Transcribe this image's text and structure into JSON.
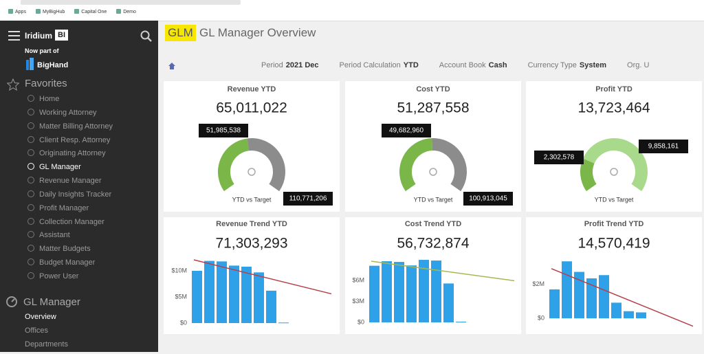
{
  "browser": {
    "bookmarks": [
      "Apps",
      "MyBigHub",
      "Capital One",
      "Demo"
    ]
  },
  "sidebar": {
    "brand": "Iridium",
    "brand_badge": "BI",
    "tagline": "Now part of",
    "partner": "BigHand",
    "favorites_title": "Favorites",
    "favorites": [
      "Home",
      "Working Attorney",
      "Matter Billing Attorney",
      "Client Resp. Attorney",
      "Originating Attorney",
      "GL Manager",
      "Revenue Manager",
      "Daily Insights Tracker",
      "Profit Manager",
      "Collection Manager",
      "Assistant",
      "Matter Budgets",
      "Budget Manager",
      "Power User"
    ],
    "section_title": "GL Manager",
    "section_items": [
      "Overview",
      "Offices",
      "Departments"
    ]
  },
  "header": {
    "badge": "GLM",
    "title": "GL Manager Overview"
  },
  "filters": [
    {
      "label": "Period",
      "value": "2021 Dec"
    },
    {
      "label": "Period Calculation",
      "value": "YTD"
    },
    {
      "label": "Account Book",
      "value": "Cash"
    },
    {
      "label": "Currency Type",
      "value": "System"
    },
    {
      "label": "Org. U"
    }
  ],
  "chart_data": [
    {
      "type": "gauge",
      "title": "Revenue YTD",
      "total": {
        "value": 65011022,
        "label": "65,011,022"
      },
      "caption": "YTD vs Target",
      "value": {
        "value": 51985538,
        "label": "51,985,538"
      },
      "target": {
        "value": 110771206,
        "label": "110,771,206"
      },
      "value_color": "#7ab648",
      "rest_color": "#8c8c8c"
    },
    {
      "type": "gauge",
      "title": "Cost YTD",
      "total": {
        "value": 51287558,
        "label": "51,287,558"
      },
      "caption": "YTD vs Target",
      "value": {
        "value": 49682960,
        "label": "49,682,960"
      },
      "target": {
        "value": 100913045,
        "label": "100,913,045"
      },
      "value_color": "#7ab648",
      "rest_color": "#8c8c8c"
    },
    {
      "type": "gauge",
      "title": "Profit YTD",
      "total": {
        "value": 13723464,
        "label": "13,723,464"
      },
      "caption": "YTD vs Target",
      "value": {
        "value": 2302578,
        "label": "2,302,578"
      },
      "target": {
        "value": 9858161,
        "label": "9,858,161"
      },
      "value_color": "#7ab648",
      "rest_color": "#a9d98b"
    },
    {
      "type": "bar",
      "title": "Revenue Trend YTD",
      "total": {
        "value": 71303293,
        "label": "71,303,293"
      },
      "categories": [
        null,
        null,
        null,
        null,
        null,
        null,
        null,
        null
      ],
      "values": [
        10000000,
        11900000,
        11800000,
        11000000,
        10800000,
        9700000,
        6200000,
        100000
      ],
      "color": "#2ea1e8",
      "ylim": [
        0,
        12500000
      ],
      "yticks": [
        {
          "value": 0,
          "label": "$0"
        },
        {
          "value": 5000000,
          "label": "$5M"
        },
        {
          "value": 10000000,
          "label": "$10M"
        }
      ],
      "trend": [
        12100000,
        5600000
      ],
      "trend_color": "#b5404a"
    },
    {
      "type": "bar",
      "title": "Cost Trend YTD",
      "total": {
        "value": 56732874,
        "label": "56,732,874"
      },
      "categories": [
        null,
        null,
        null,
        null,
        null,
        null,
        null,
        null
      ],
      "values": [
        8150000,
        8800000,
        8700000,
        8200000,
        9000000,
        8900000,
        5600000,
        100000
      ],
      "color": "#2ea1e8",
      "ylim": [
        0,
        9300000
      ],
      "yticks": [
        {
          "value": 0,
          "label": "$0"
        },
        {
          "value": 3000000,
          "label": "$3M"
        },
        {
          "value": 6000000,
          "label": "$6M"
        }
      ],
      "trend": [
        8800000,
        6000000
      ],
      "trend_color": "#a8b850"
    },
    {
      "type": "bar",
      "title": "Profit Trend YTD",
      "total": {
        "value": 14570419,
        "label": "14,570,419"
      },
      "categories": [
        null,
        null,
        null,
        null,
        null,
        null,
        null,
        null
      ],
      "values": [
        1700000,
        3350000,
        2730000,
        2350000,
        2540000,
        920000,
        420000,
        350000
      ],
      "color": "#2ea1e8",
      "ylim": [
        -600000,
        3600000
      ],
      "yticks": [
        {
          "value": 0,
          "label": "$0"
        },
        {
          "value": 2000000,
          "label": "$2M"
        }
      ],
      "trend": [
        2920000,
        -460000
      ],
      "trend_color": "#b5404a"
    }
  ]
}
